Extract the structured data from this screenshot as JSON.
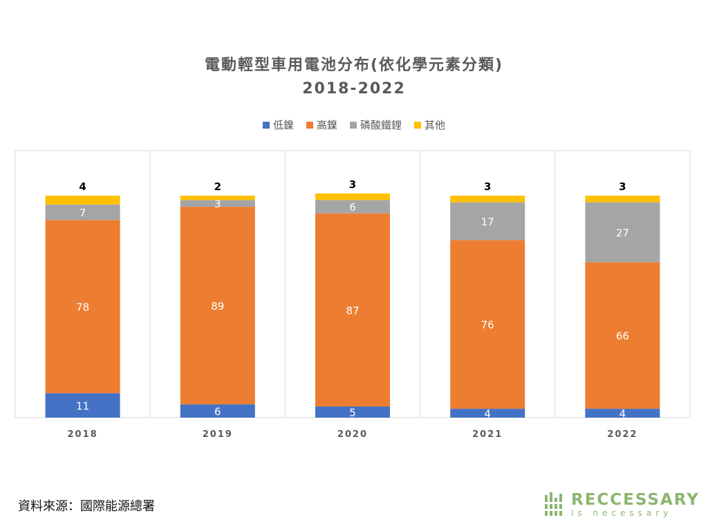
{
  "chart_data": {
    "type": "bar",
    "stacked": true,
    "title": "電動輕型車用電池分布(依化學元素分類)",
    "subtitle": "2018-2022",
    "categories": [
      "2018",
      "2019",
      "2020",
      "2021",
      "2022"
    ],
    "series": [
      {
        "name": "低鎳",
        "color": "#4472C4",
        "values": [
          11,
          6,
          5,
          4,
          4
        ]
      },
      {
        "name": "高鎳",
        "color": "#ED7D31",
        "values": [
          78,
          89,
          87,
          76,
          66
        ]
      },
      {
        "name": "磷酸鐵鋰",
        "color": "#A5A5A5",
        "values": [
          7,
          3,
          6,
          17,
          27
        ]
      },
      {
        "name": "其他",
        "color": "#FFC000",
        "values": [
          4,
          2,
          3,
          3,
          3
        ]
      }
    ],
    "legend_position": "top",
    "grid": false,
    "ylim": [
      0,
      100
    ]
  },
  "source_text": "資料來源：國際能源總署",
  "logo": {
    "name": "RECCESSARY",
    "tagline": "is necessary",
    "color": "#8cb56f"
  }
}
